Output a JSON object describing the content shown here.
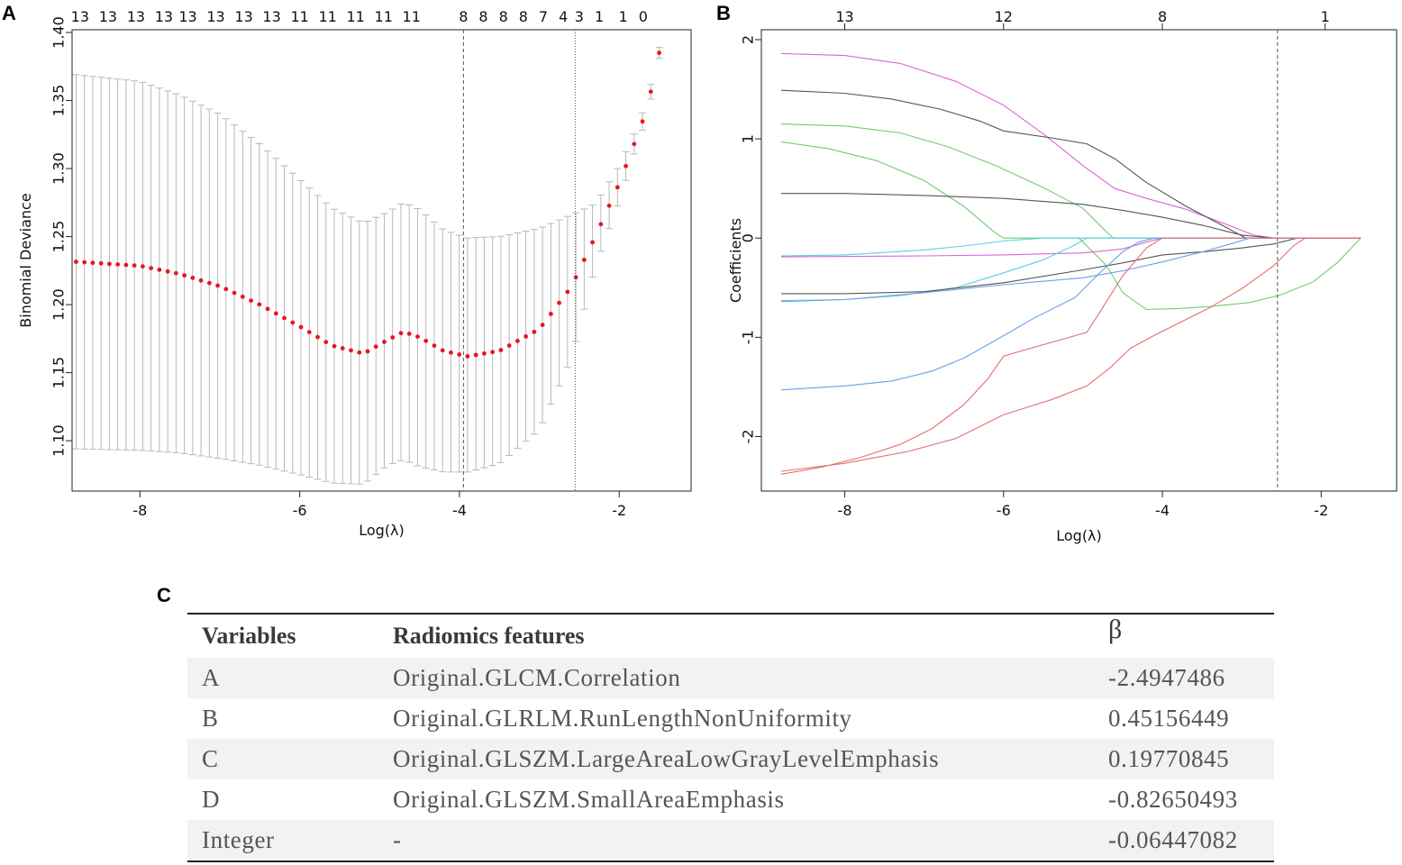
{
  "panels": {
    "a": "A",
    "b": "B",
    "c": "C"
  },
  "chart_data": [
    {
      "type": "scatter",
      "name": "cross-validation deviance",
      "xlabel": "Log(λ)",
      "ylabel": "Binomial Deviance",
      "xlim": [
        -8.85,
        -1.1
      ],
      "ylim": [
        1.063,
        1.402
      ],
      "xticks": [
        -8,
        -6,
        -4,
        -2
      ],
      "yticks": [
        "1.10",
        "1.15",
        "1.20",
        "1.25",
        "1.30",
        "1.35",
        "1.40"
      ],
      "top_axis_labels": [
        "13",
        "13",
        "13",
        "13",
        "13",
        "13",
        "13",
        "13",
        "11",
        "11",
        "11",
        "11",
        "11",
        "8",
        "8",
        "8",
        "8",
        "7",
        "4",
        "3",
        "1",
        "1",
        "0"
      ],
      "top_axis_positions": [
        -8.75,
        -8.4,
        -8.05,
        -7.7,
        -7.4,
        -7.05,
        -6.7,
        -6.35,
        -6.0,
        -5.65,
        -5.3,
        -4.95,
        -4.6,
        -3.95,
        -3.7,
        -3.45,
        -3.2,
        -2.95,
        -2.7,
        -2.5,
        -2.25,
        -1.95,
        -1.7
      ],
      "vlines": [
        -3.95,
        -2.55
      ],
      "points_curve": {
        "x_from": -8.8,
        "x_to": -1.5,
        "n": 71,
        "knots": [
          {
            "x": -8.8,
            "mean": 1.2315,
            "lo": 1.094,
            "hi": 1.369
          },
          {
            "x": -8.0,
            "mean": 1.2285,
            "lo": 1.093,
            "hi": 1.364
          },
          {
            "x": -7.5,
            "mean": 1.2225,
            "lo": 1.091,
            "hi": 1.354
          },
          {
            "x": -7.0,
            "mean": 1.2135,
            "lo": 1.087,
            "hi": 1.34
          },
          {
            "x": -6.5,
            "mean": 1.2,
            "lo": 1.082,
            "hi": 1.318
          },
          {
            "x": -6.0,
            "mean": 1.184,
            "lo": 1.075,
            "hi": 1.292
          },
          {
            "x": -5.6,
            "mean": 1.17,
            "lo": 1.069,
            "hi": 1.271
          },
          {
            "x": -5.2,
            "mean": 1.164,
            "lo": 1.068,
            "hi": 1.26
          },
          {
            "x": -4.9,
            "mean": 1.174,
            "lo": 1.082,
            "hi": 1.268
          },
          {
            "x": -4.7,
            "mean": 1.18,
            "lo": 1.086,
            "hi": 1.275
          },
          {
            "x": -4.5,
            "mean": 1.176,
            "lo": 1.081,
            "hi": 1.27
          },
          {
            "x": -4.2,
            "mean": 1.166,
            "lo": 1.077,
            "hi": 1.255
          },
          {
            "x": -3.9,
            "mean": 1.162,
            "lo": 1.077,
            "hi": 1.249
          },
          {
            "x": -3.5,
            "mean": 1.166,
            "lo": 1.083,
            "hi": 1.25
          },
          {
            "x": -3.0,
            "mean": 1.182,
            "lo": 1.108,
            "hi": 1.256
          },
          {
            "x": -2.6,
            "mean": 1.213,
            "lo": 1.16,
            "hi": 1.266
          },
          {
            "x": -2.3,
            "mean": 1.25,
            "lo": 1.228,
            "hi": 1.274
          },
          {
            "x": -2.0,
            "mean": 1.289,
            "lo": 1.276,
            "hi": 1.302
          },
          {
            "x": -1.8,
            "mean": 1.32,
            "lo": 1.313,
            "hi": 1.327
          },
          {
            "x": -1.65,
            "mean": 1.344,
            "lo": 1.338,
            "hi": 1.35
          },
          {
            "x": -1.5,
            "mean": 1.385,
            "lo": 1.381,
            "hi": 1.389
          }
        ]
      }
    },
    {
      "type": "line",
      "name": "coefficient paths",
      "xlabel": "Log(λ)",
      "ylabel": "Coefficients",
      "xlim": [
        -9.05,
        -1.05
      ],
      "ylim": [
        -2.55,
        2.1
      ],
      "xticks": [
        -8,
        -6,
        -4,
        -2
      ],
      "yticks": [
        -2,
        -1,
        0,
        1,
        2
      ],
      "top_axis_labels": [
        "13",
        "12",
        "8",
        "1"
      ],
      "top_axis_positions": [
        -8.0,
        -6.0,
        -4.0,
        -1.95
      ],
      "vlines": [
        -2.55
      ],
      "series": [
        {
          "color": "#d966d9",
          "points": [
            [
              -8.8,
              1.86
            ],
            [
              -8.0,
              1.84
            ],
            [
              -7.3,
              1.76
            ],
            [
              -6.6,
              1.58
            ],
            [
              -6.0,
              1.34
            ],
            [
              -5.5,
              1.05
            ],
            [
              -5.0,
              0.73
            ],
            [
              -4.6,
              0.5
            ],
            [
              -4.2,
              0.4
            ],
            [
              -3.7,
              0.29
            ],
            [
              -3.2,
              0.14
            ],
            [
              -2.85,
              0.03
            ],
            [
              -2.6,
              0.0
            ],
            [
              -1.5,
              0.0
            ]
          ]
        },
        {
          "color": "#555555",
          "points": [
            [
              -8.8,
              1.49
            ],
            [
              -8.0,
              1.46
            ],
            [
              -7.4,
              1.4
            ],
            [
              -6.8,
              1.3
            ],
            [
              -6.3,
              1.18
            ],
            [
              -6.0,
              1.08
            ],
            [
              -5.4,
              1.01
            ],
            [
              -4.95,
              0.95
            ],
            [
              -4.6,
              0.8
            ],
            [
              -4.2,
              0.56
            ],
            [
              -3.7,
              0.32
            ],
            [
              -3.2,
              0.11
            ],
            [
              -2.95,
              0.0
            ],
            [
              -1.5,
              0.0
            ]
          ]
        },
        {
          "color": "#70cc70",
          "points": [
            [
              -8.8,
              1.15
            ],
            [
              -8.0,
              1.13
            ],
            [
              -7.3,
              1.06
            ],
            [
              -6.7,
              0.92
            ],
            [
              -6.1,
              0.73
            ],
            [
              -5.5,
              0.51
            ],
            [
              -5.0,
              0.3
            ],
            [
              -4.75,
              0.1
            ],
            [
              -4.62,
              0.0
            ],
            [
              -1.5,
              0.0
            ]
          ]
        },
        {
          "color": "#70cc70",
          "points": [
            [
              -8.8,
              0.97
            ],
            [
              -8.2,
              0.9
            ],
            [
              -7.6,
              0.78
            ],
            [
              -7.0,
              0.58
            ],
            [
              -6.5,
              0.32
            ],
            [
              -6.1,
              0.05
            ],
            [
              -6.0,
              0.0
            ],
            [
              -5.05,
              0.0
            ],
            [
              -4.7,
              -0.28
            ],
            [
              -4.5,
              -0.55
            ],
            [
              -4.2,
              -0.72
            ],
            [
              -3.8,
              -0.71
            ],
            [
              -3.4,
              -0.69
            ],
            [
              -2.9,
              -0.65
            ],
            [
              -2.5,
              -0.57
            ],
            [
              -2.1,
              -0.44
            ],
            [
              -1.8,
              -0.25
            ],
            [
              -1.5,
              0.0
            ]
          ]
        },
        {
          "color": "#555555",
          "points": [
            [
              -8.8,
              0.45
            ],
            [
              -8.0,
              0.45
            ],
            [
              -7.0,
              0.43
            ],
            [
              -6.0,
              0.4
            ],
            [
              -5.0,
              0.34
            ],
            [
              -4.5,
              0.28
            ],
            [
              -4.0,
              0.21
            ],
            [
              -3.5,
              0.13
            ],
            [
              -3.0,
              0.03
            ],
            [
              -2.6,
              0.0
            ],
            [
              -1.5,
              0.0
            ]
          ]
        },
        {
          "color": "#5ad0e0",
          "points": [
            [
              -8.8,
              -0.18
            ],
            [
              -8.0,
              -0.17
            ],
            [
              -7.0,
              -0.12
            ],
            [
              -6.5,
              -0.08
            ],
            [
              -6.0,
              -0.03
            ],
            [
              -5.5,
              0.0
            ],
            [
              -1.5,
              0.0
            ]
          ]
        },
        {
          "color": "#d966d9",
          "points": [
            [
              -8.8,
              -0.19
            ],
            [
              -7.0,
              -0.18
            ],
            [
              -6.0,
              -0.17
            ],
            [
              -5.0,
              -0.15
            ],
            [
              -4.5,
              -0.11
            ],
            [
              -4.2,
              -0.04
            ],
            [
              -4.0,
              0.0
            ],
            [
              -1.5,
              0.0
            ]
          ]
        },
        {
          "color": "#5ad0e0",
          "points": [
            [
              -8.8,
              -0.63
            ],
            [
              -8.0,
              -0.62
            ],
            [
              -7.3,
              -0.58
            ],
            [
              -6.6,
              -0.5
            ],
            [
              -6.0,
              -0.35
            ],
            [
              -5.5,
              -0.22
            ],
            [
              -5.1,
              -0.07
            ],
            [
              -4.95,
              0.0
            ],
            [
              -1.5,
              0.0
            ]
          ]
        },
        {
          "color": "#555555",
          "points": [
            [
              -8.8,
              -0.56
            ],
            [
              -8.0,
              -0.56
            ],
            [
              -7.0,
              -0.54
            ],
            [
              -6.0,
              -0.45
            ],
            [
              -5.0,
              -0.32
            ],
            [
              -4.5,
              -0.25
            ],
            [
              -4.0,
              -0.17
            ],
            [
              -3.5,
              -0.14
            ],
            [
              -3.0,
              -0.1
            ],
            [
              -2.6,
              -0.06
            ],
            [
              -2.3,
              0.0
            ],
            [
              -1.5,
              0.0
            ]
          ]
        },
        {
          "color": "#6aa0e8",
          "points": [
            [
              -8.8,
              -0.64
            ],
            [
              -8.0,
              -0.62
            ],
            [
              -7.0,
              -0.55
            ],
            [
              -6.0,
              -0.47
            ],
            [
              -5.0,
              -0.4
            ],
            [
              -4.5,
              -0.33
            ],
            [
              -4.0,
              -0.24
            ],
            [
              -3.5,
              -0.14
            ],
            [
              -3.1,
              -0.05
            ],
            [
              -2.9,
              0.0
            ],
            [
              -1.5,
              0.0
            ]
          ]
        },
        {
          "color": "#6aa0e8",
          "points": [
            [
              -8.8,
              -1.53
            ],
            [
              -8.0,
              -1.49
            ],
            [
              -7.4,
              -1.44
            ],
            [
              -6.9,
              -1.34
            ],
            [
              -6.5,
              -1.21
            ],
            [
              -6.1,
              -1.03
            ],
            [
              -5.6,
              -0.8
            ],
            [
              -5.1,
              -0.6
            ],
            [
              -4.8,
              -0.36
            ],
            [
              -4.5,
              -0.14
            ],
            [
              -4.3,
              -0.04
            ],
            [
              -4.1,
              0.0
            ],
            [
              -1.5,
              0.0
            ]
          ]
        },
        {
          "color": "#e07070",
          "points": [
            [
              -8.8,
              -2.38
            ],
            [
              -8.3,
              -2.31
            ],
            [
              -7.8,
              -2.21
            ],
            [
              -7.3,
              -2.08
            ],
            [
              -6.9,
              -1.92
            ],
            [
              -6.5,
              -1.68
            ],
            [
              -6.2,
              -1.42
            ],
            [
              -6.0,
              -1.19
            ],
            [
              -5.7,
              -1.12
            ],
            [
              -5.3,
              -1.03
            ],
            [
              -4.95,
              -0.95
            ],
            [
              -4.75,
              -0.7
            ],
            [
              -4.5,
              -0.38
            ],
            [
              -4.2,
              -0.1
            ],
            [
              -4.0,
              0.0
            ],
            [
              -1.5,
              0.0
            ]
          ]
        },
        {
          "color": "#e07070",
          "points": [
            [
              -8.8,
              -2.35
            ],
            [
              -8.0,
              -2.27
            ],
            [
              -7.2,
              -2.15
            ],
            [
              -6.6,
              -2.02
            ],
            [
              -6.0,
              -1.78
            ],
            [
              -5.4,
              -1.63
            ],
            [
              -4.95,
              -1.49
            ],
            [
              -4.65,
              -1.3
            ],
            [
              -4.4,
              -1.11
            ],
            [
              -4.1,
              -0.98
            ],
            [
              -3.8,
              -0.86
            ],
            [
              -3.4,
              -0.7
            ],
            [
              -3.0,
              -0.51
            ],
            [
              -2.6,
              -0.28
            ],
            [
              -2.35,
              -0.08
            ],
            [
              -2.2,
              0.0
            ],
            [
              -1.5,
              0.0
            ]
          ]
        }
      ]
    },
    {
      "type": "table",
      "columns": [
        "Variables",
        "Radiomics features",
        "β"
      ],
      "rows": [
        {
          "variable": "A",
          "feature": "Original.GLCM.Correlation",
          "beta": "-2.4947486"
        },
        {
          "variable": "B",
          "feature": "Original.GLRLM.RunLengthNonUniformity",
          "beta": "0.45156449"
        },
        {
          "variable": "C",
          "feature": "Original.GLSZM.LargeAreaLowGrayLevelEmphasis",
          "beta": "0.19770845"
        },
        {
          "variable": "D",
          "feature": "Original.GLSZM.SmallAreaEmphasis",
          "beta": "-0.82650493"
        },
        {
          "variable": "Integer",
          "feature": "-",
          "beta": "-0.06447082"
        }
      ]
    }
  ]
}
